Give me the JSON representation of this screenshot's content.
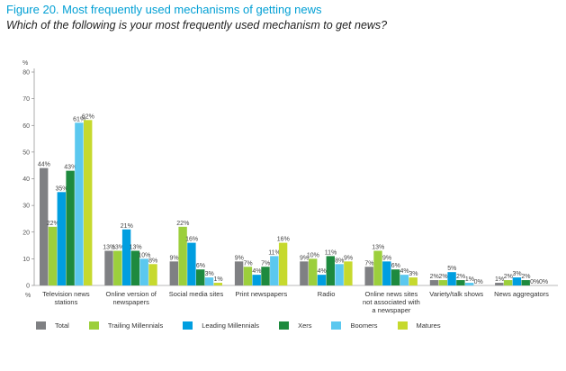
{
  "title": "Figure 20. Most frequently used mechanisms of getting news",
  "subtitle": "Which of the following is your most frequently used mechanism to get news?",
  "chart_data": {
    "type": "bar",
    "ylabel": "%",
    "ylim": [
      0,
      80
    ],
    "yticks": [
      0,
      10,
      20,
      30,
      40,
      50,
      60,
      70,
      80
    ],
    "grid": false,
    "legend_position": "bottom",
    "categories": [
      [
        "Television news",
        "stations"
      ],
      [
        "Online version of",
        "newspapers"
      ],
      [
        "Social media sites"
      ],
      [
        "Print newspapers"
      ],
      [
        "Radio"
      ],
      [
        "Online news sites",
        "not associated with",
        "a newspaper"
      ],
      [
        "Variety/talk shows"
      ],
      [
        "News aggregators"
      ]
    ],
    "series": [
      {
        "name": "Total",
        "color": "#7f8083",
        "values": [
          44,
          13,
          9,
          9,
          9,
          7,
          2,
          1
        ]
      },
      {
        "name": "Trailing Millennials",
        "color": "#9ccf3c",
        "values": [
          22,
          13,
          22,
          7,
          10,
          13,
          2,
          2
        ]
      },
      {
        "name": "Leading Millennials",
        "color": "#009ee0",
        "values": [
          35,
          21,
          16,
          4,
          4,
          9,
          5,
          3
        ]
      },
      {
        "name": "Xers",
        "color": "#1e8a3e",
        "values": [
          43,
          13,
          6,
          7,
          11,
          6,
          2,
          2
        ]
      },
      {
        "name": "Boomers",
        "color": "#5bc8ef",
        "values": [
          61,
          10,
          3,
          11,
          8,
          4,
          1,
          0
        ]
      },
      {
        "name": "Matures",
        "color": "#c6d92e",
        "values": [
          62,
          8,
          1,
          16,
          9,
          3,
          0,
          0
        ]
      }
    ]
  }
}
